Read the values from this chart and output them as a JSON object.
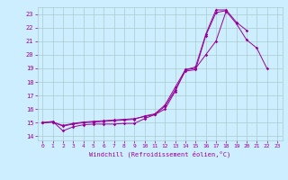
{
  "title": "",
  "xlabel": "Windchill (Refroidissement éolien,°C)",
  "bg_color": "#cceeff",
  "grid_color": "#aacccc",
  "line_color": "#990099",
  "xlim": [
    -0.5,
    23.5
  ],
  "ylim": [
    13.7,
    23.5
  ],
  "xticks": [
    0,
    1,
    2,
    3,
    4,
    5,
    6,
    7,
    8,
    9,
    10,
    11,
    12,
    13,
    14,
    15,
    16,
    17,
    18,
    19,
    20,
    21,
    22,
    23
  ],
  "yticks": [
    14,
    15,
    16,
    17,
    18,
    19,
    20,
    21,
    22,
    23
  ],
  "curve1_y": [
    15.0,
    15.1,
    14.4,
    14.7,
    14.85,
    14.9,
    14.9,
    14.9,
    14.95,
    14.95,
    15.3,
    15.6,
    16.0,
    17.3,
    18.9,
    19.0,
    20.0,
    21.0,
    23.2,
    22.3,
    21.1,
    20.5,
    19.0,
    null
  ],
  "curve2_y": [
    15.0,
    15.05,
    14.8,
    14.95,
    15.05,
    15.1,
    15.15,
    15.2,
    15.25,
    15.3,
    15.45,
    15.6,
    16.2,
    17.4,
    18.8,
    18.9,
    21.4,
    23.1,
    23.25,
    null,
    null,
    null,
    null,
    null
  ],
  "curve3_y": [
    15.0,
    15.05,
    14.75,
    14.9,
    15.0,
    15.05,
    15.1,
    15.15,
    15.2,
    15.25,
    15.5,
    15.65,
    16.3,
    17.6,
    18.9,
    19.1,
    21.5,
    23.3,
    23.3,
    22.4,
    21.8,
    null,
    null,
    null
  ]
}
